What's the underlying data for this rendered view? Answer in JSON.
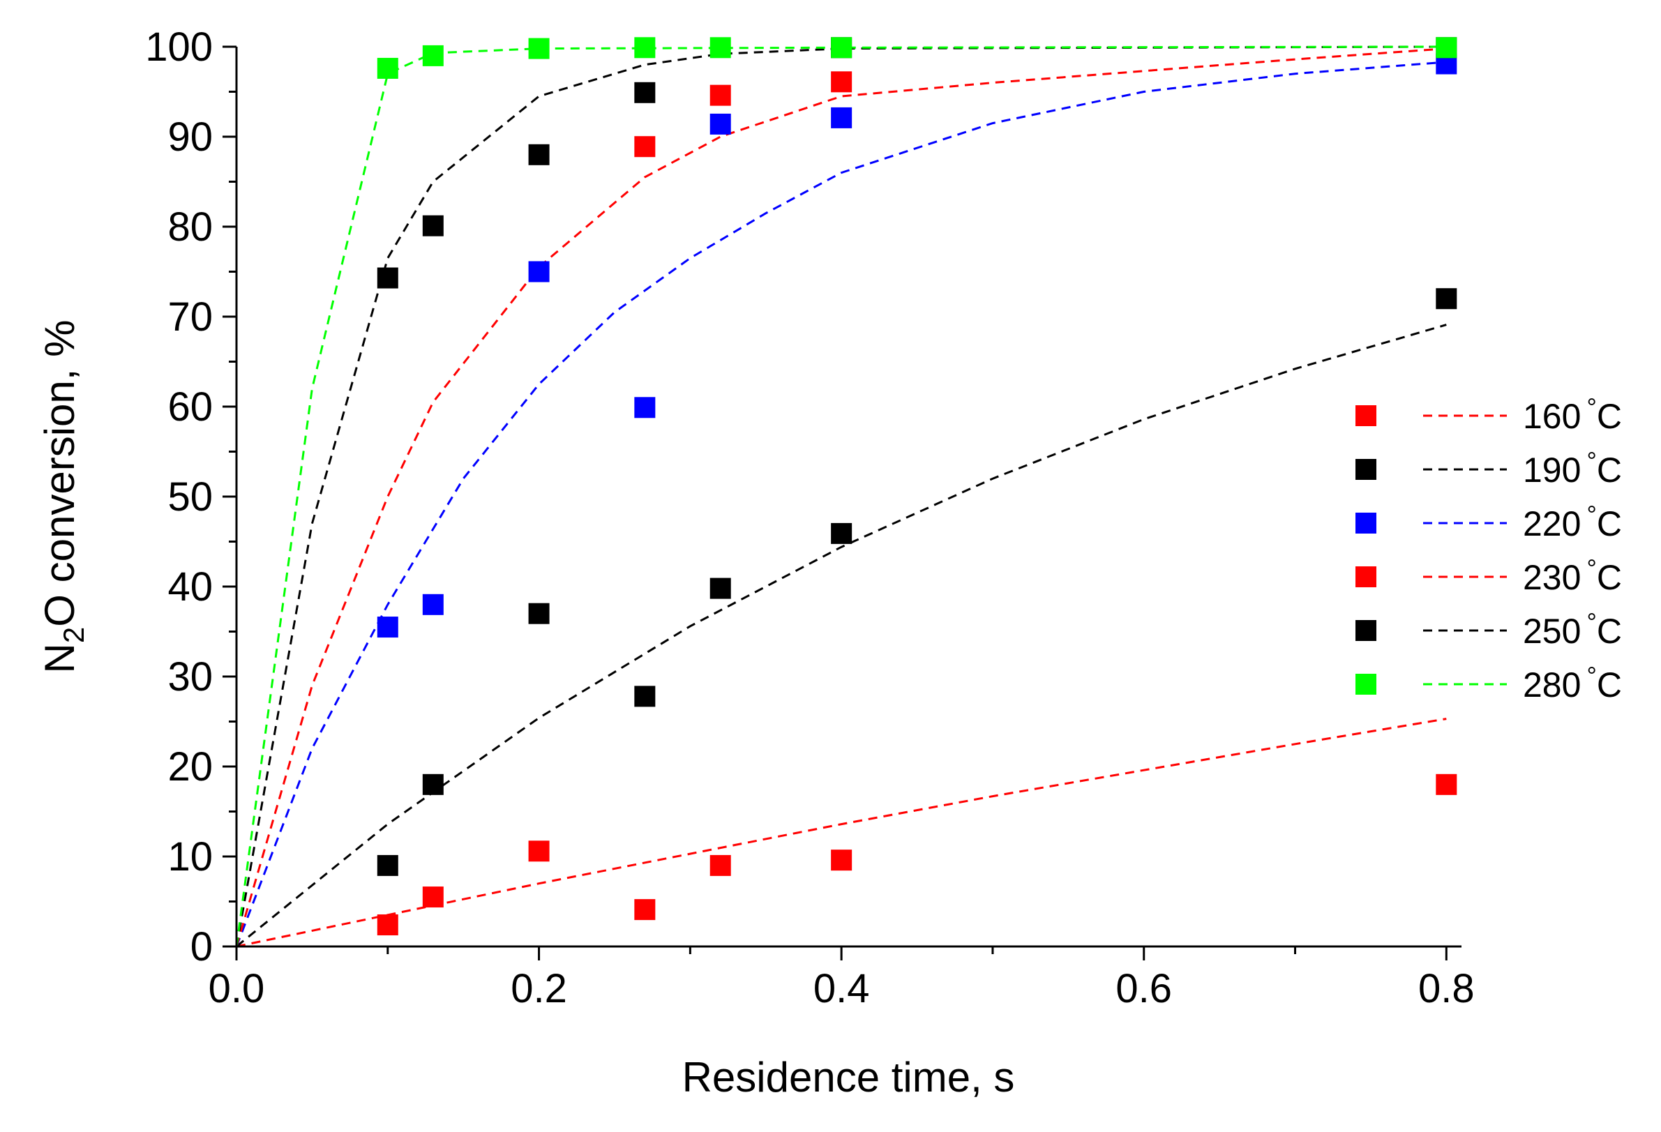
{
  "chart_data": {
    "type": "scatter",
    "title": "",
    "xlabel": "Residence time, s",
    "ylabel_parts": {
      "pre": "N",
      "sub": "2",
      "post": "O conversion, %"
    },
    "xlim": [
      0.0,
      0.81
    ],
    "ylim": [
      0,
      100
    ],
    "xticks": [
      "0.0",
      "0.2",
      "0.4",
      "0.6",
      "0.8"
    ],
    "xtick_values": [
      0.0,
      0.2,
      0.4,
      0.6,
      0.8
    ],
    "yticks": [
      "0",
      "10",
      "20",
      "30",
      "40",
      "50",
      "60",
      "70",
      "80",
      "90",
      "100"
    ],
    "ytick_values": [
      0,
      10,
      20,
      30,
      40,
      50,
      60,
      70,
      80,
      90,
      100
    ],
    "legend_position": "right",
    "series": [
      {
        "name": "160 °C",
        "value": "160",
        "unit": "°C",
        "color": "#ff0000",
        "points": [
          [
            0.1,
            2.4
          ],
          [
            0.13,
            5.5
          ],
          [
            0.2,
            10.6
          ],
          [
            0.27,
            4.1
          ],
          [
            0.32,
            9.0
          ],
          [
            0.4,
            9.6
          ],
          [
            0.8,
            18.0
          ]
        ],
        "fit": [
          [
            0,
            0
          ],
          [
            0.1,
            3.5
          ],
          [
            0.2,
            7.0
          ],
          [
            0.3,
            10.3
          ],
          [
            0.4,
            13.6
          ],
          [
            0.5,
            16.7
          ],
          [
            0.6,
            19.6
          ],
          [
            0.7,
            22.5
          ],
          [
            0.8,
            25.3
          ]
        ]
      },
      {
        "name": "190 °C",
        "value": "190",
        "unit": "°C",
        "color": "#000000",
        "points": [
          [
            0.1,
            9.0
          ],
          [
            0.13,
            18.0
          ],
          [
            0.2,
            37.0
          ],
          [
            0.27,
            27.8
          ],
          [
            0.32,
            39.8
          ],
          [
            0.4,
            45.9
          ],
          [
            0.8,
            72.0
          ]
        ],
        "fit": [
          [
            0,
            0
          ],
          [
            0.1,
            13.6
          ],
          [
            0.2,
            25.4
          ],
          [
            0.3,
            35.6
          ],
          [
            0.4,
            44.4
          ],
          [
            0.5,
            52.0
          ],
          [
            0.6,
            58.6
          ],
          [
            0.7,
            64.2
          ],
          [
            0.8,
            69.1
          ]
        ]
      },
      {
        "name": "220 °C",
        "value": "220",
        "unit": "°C",
        "color": "#0000ff",
        "points": [
          [
            0.1,
            35.5
          ],
          [
            0.13,
            38.0
          ],
          [
            0.2,
            75.0
          ],
          [
            0.27,
            59.9
          ],
          [
            0.32,
            91.4
          ],
          [
            0.4,
            92.1
          ],
          [
            0.8,
            98.1
          ]
        ],
        "fit": [
          [
            0,
            0
          ],
          [
            0.05,
            22.0
          ],
          [
            0.1,
            38.0
          ],
          [
            0.15,
            52.0
          ],
          [
            0.2,
            62.5
          ],
          [
            0.25,
            70.5
          ],
          [
            0.3,
            76.5
          ],
          [
            0.35,
            81.5
          ],
          [
            0.4,
            86.0
          ],
          [
            0.5,
            91.5
          ],
          [
            0.6,
            95.0
          ],
          [
            0.7,
            97.0
          ],
          [
            0.8,
            98.3
          ]
        ]
      },
      {
        "name": "230 °C",
        "value": "230",
        "unit": "°C",
        "color": "#ff0000",
        "points": [
          [
            0.27,
            88.9
          ],
          [
            0.32,
            94.6
          ],
          [
            0.4,
            96.1
          ]
        ],
        "fit": [
          [
            0,
            0
          ],
          [
            0.05,
            29.0
          ],
          [
            0.1,
            50.0
          ],
          [
            0.13,
            60.5
          ],
          [
            0.2,
            75.5
          ],
          [
            0.27,
            85.5
          ],
          [
            0.32,
            90.0
          ],
          [
            0.4,
            94.5
          ],
          [
            0.5,
            96.0
          ],
          [
            0.6,
            97.3
          ],
          [
            0.7,
            98.6
          ],
          [
            0.8,
            99.8
          ]
        ]
      },
      {
        "name": "250 °C",
        "value": "250",
        "unit": "°C",
        "color": "#000000",
        "points": [
          [
            0.1,
            74.3
          ],
          [
            0.13,
            80.1
          ],
          [
            0.2,
            88.0
          ],
          [
            0.27,
            94.9
          ],
          [
            0.4,
            99.9
          ],
          [
            0.8,
            99.9
          ]
        ],
        "fit": [
          [
            0,
            0
          ],
          [
            0.05,
            47.0
          ],
          [
            0.1,
            76.5
          ],
          [
            0.13,
            85.0
          ],
          [
            0.2,
            94.5
          ],
          [
            0.27,
            98.0
          ],
          [
            0.32,
            99.2
          ],
          [
            0.4,
            99.8
          ],
          [
            0.8,
            100.0
          ]
        ]
      },
      {
        "name": "280 °C",
        "value": "280",
        "unit": "°C",
        "color": "#00ff00",
        "points": [
          [
            0.1,
            97.6
          ],
          [
            0.13,
            99.0
          ],
          [
            0.2,
            99.8
          ],
          [
            0.27,
            99.9
          ],
          [
            0.32,
            99.9
          ],
          [
            0.4,
            99.9
          ],
          [
            0.8,
            99.9
          ]
        ],
        "fit": [
          [
            0,
            0
          ],
          [
            0.05,
            62.0
          ],
          [
            0.1,
            97.0
          ],
          [
            0.13,
            99.3
          ],
          [
            0.2,
            99.8
          ],
          [
            0.4,
            99.9
          ],
          [
            0.8,
            100.0
          ]
        ]
      }
    ]
  }
}
